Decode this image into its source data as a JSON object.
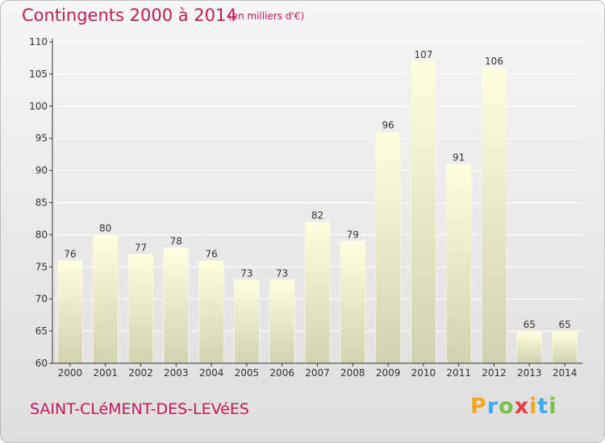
{
  "header": {
    "title": "Contingents 2000 à 2014",
    "subtitle": "(en milliers d'€)"
  },
  "footer": {
    "commune": "SAINT-CLéMENT-DES-LEVéES",
    "logo": "Proxiti",
    "logo_letters": [
      "P",
      "r",
      "o",
      "x",
      "i",
      "t",
      "i"
    ]
  },
  "colors": {
    "title": "#c2185b",
    "bar_top": "#ffffe0",
    "bar_bottom": "#d2d2b0",
    "grid": "#ffffff",
    "axis": "#333333"
  },
  "chart_data": {
    "type": "bar",
    "categories": [
      "2000",
      "2001",
      "2002",
      "2003",
      "2004",
      "2005",
      "2006",
      "2007",
      "2008",
      "2009",
      "2010",
      "2011",
      "2012",
      "2013",
      "2014"
    ],
    "values": [
      76,
      80,
      77,
      78,
      76,
      73,
      73,
      82,
      79,
      96,
      107,
      91,
      106,
      65,
      65
    ],
    "ylim": [
      60,
      110
    ],
    "yticks": [
      60,
      65,
      70,
      75,
      80,
      85,
      90,
      95,
      100,
      105,
      110
    ],
    "grid": true,
    "xlabel": "",
    "ylabel": ""
  }
}
